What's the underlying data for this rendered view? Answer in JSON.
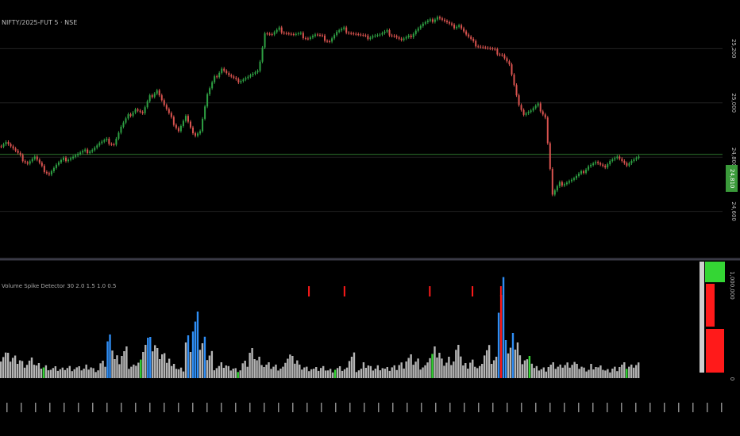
{
  "symbol_label": "NIFTY/2025-FUT 5 · NSE",
  "indicator_label": "Volume Spike Detector 30 2.0 1.5 1.0 0.5",
  "last_price_label": "24,810",
  "colors": {
    "up": "#2ea043",
    "down": "#d9534f",
    "gridline": "#222222",
    "priceLine": "#2f7a2f",
    "volNormal": "#b5b5b5",
    "volBlue": "#2f8ef5",
    "volGreen": "#34d634",
    "volRed": "#ff1a1a"
  },
  "chart_data": {
    "type": "candlestick",
    "price_axis": {
      "ticks": [
        "25,200",
        "25,000",
        "24,800",
        "24,600"
      ],
      "ylim": [
        24450,
        25350
      ]
    },
    "volume_axis": {
      "ticks": [
        "1,000,000",
        "0"
      ]
    },
    "last_price": 24810,
    "price_series": [
      24840,
      24860,
      24830,
      24800,
      24780,
      24800,
      24760,
      24740,
      24770,
      24790,
      24800,
      24810,
      24820,
      24830,
      24850,
      24860,
      24850,
      24910,
      24950,
      24980,
      24960,
      25020,
      25050,
      24990,
      24940,
      24900,
      24950,
      24880,
      24900,
      25030,
      25090,
      25130,
      25100,
      25080,
      25090,
      25100,
      25110,
      25260,
      25250,
      25270,
      25260,
      25250,
      25250,
      25240,
      25250,
      25240,
      25230,
      25260,
      25270,
      25260,
      25250,
      25240,
      25250,
      25250,
      25260,
      25250,
      25230,
      25240,
      25270,
      25290,
      25300,
      25320,
      25300,
      25280,
      25290,
      25250,
      25220,
      25210,
      25200,
      25190,
      25180,
      25140,
      25020,
      24960,
      24970,
      24990,
      24950,
      24660,
      24700,
      24710,
      24720,
      24740,
      24770,
      24780,
      24760,
      24790,
      24800,
      24770,
      24790,
      24800
    ],
    "volume_bars": [
      38,
      32,
      30,
      24,
      26,
      20,
      18,
      15,
      14,
      17,
      16,
      15,
      18,
      14,
      22,
      58,
      32,
      40,
      18,
      26,
      60,
      52,
      40,
      35,
      18,
      14,
      60,
      84,
      55,
      38,
      18,
      20,
      16,
      14,
      22,
      40,
      30,
      20,
      18,
      16,
      35,
      28,
      18,
      16,
      14,
      16,
      13,
      15,
      14,
      36,
      14,
      20,
      16,
      18,
      14,
      17,
      22,
      30,
      26,
      18,
      36,
      40,
      26,
      30,
      42,
      20,
      26,
      18,
      44,
      30,
      150,
      48,
      60,
      32,
      28,
      16,
      15,
      20,
      18,
      22,
      24,
      18,
      14,
      20,
      16,
      12,
      16,
      20,
      18,
      22
    ],
    "spike_markers": [
      43,
      48,
      60,
      66,
      70
    ]
  }
}
